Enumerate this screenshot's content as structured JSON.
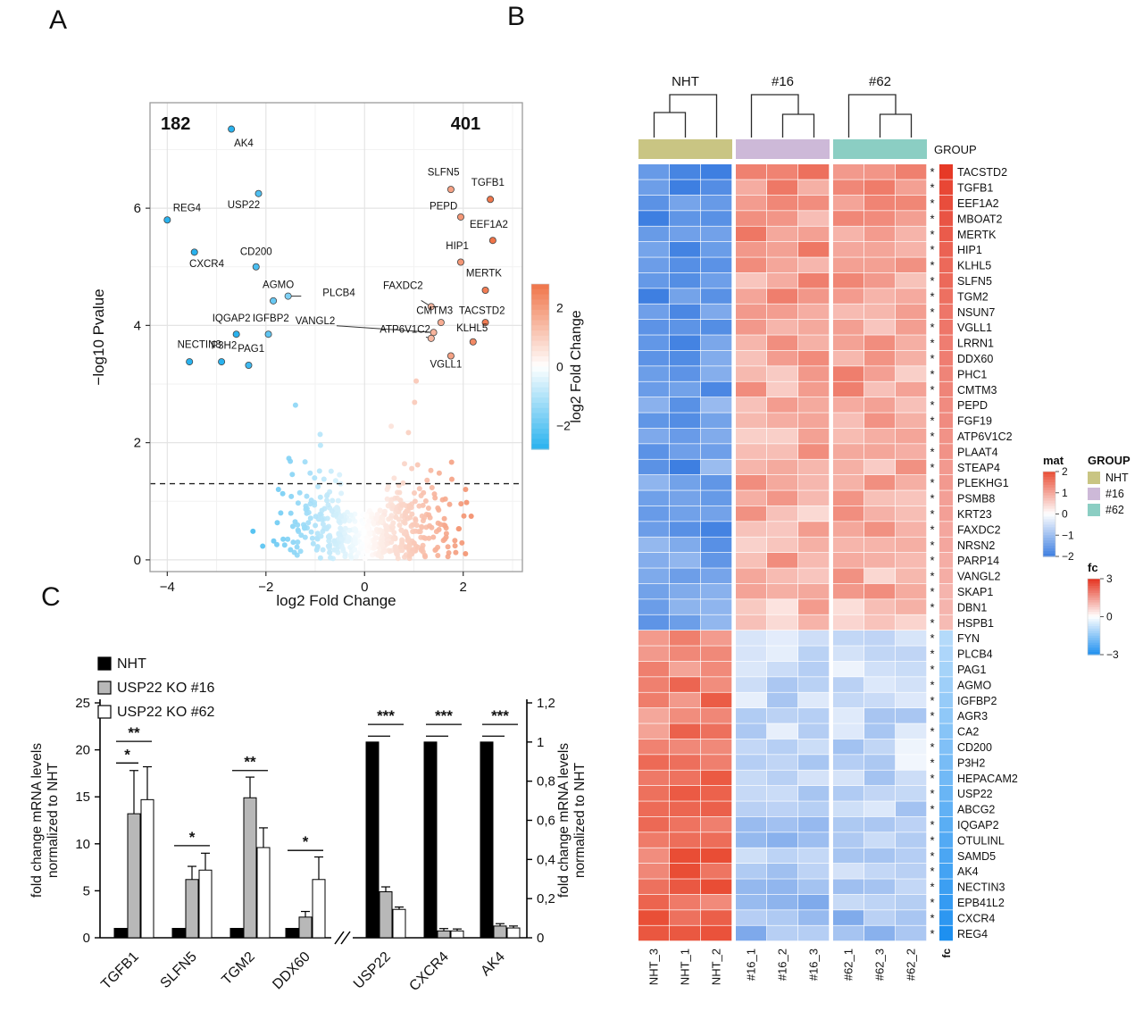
{
  "figure": {
    "panel_a_label": "A",
    "panel_b_label": "B",
    "panel_c_label": "C"
  },
  "chart_data": [
    {
      "id": "volcano",
      "type": "scatter",
      "xlabel": "log2 Fold Change",
      "ylabel": "−log10 Pvalue",
      "xlim": [
        -4.35,
        3.2
      ],
      "ylim": [
        -0.2,
        7.8
      ],
      "xticks": [
        -4,
        -2,
        0,
        2
      ],
      "yticks": [
        0,
        2,
        4,
        6
      ],
      "threshold_y": 1.3,
      "count_down": "182",
      "count_up": "401",
      "count_down_color": "#3fc0ea",
      "count_up_color": "#ee8a64",
      "point_color_neg": "#29b2ee",
      "point_color_pos": "#f07448",
      "colorbar": {
        "title": "log2 Fold Change",
        "ticks": [
          "2",
          "0",
          "−2"
        ],
        "tick_values": [
          2,
          0,
          -2
        ],
        "range": 2.8
      },
      "labeled_points": [
        {
          "gene": "AK4",
          "x": -2.7,
          "y": 7.35,
          "lx": -2.45,
          "ly": 7.05
        },
        {
          "gene": "REG4",
          "x": -4.0,
          "y": 5.8,
          "lx": -3.6,
          "ly": 5.95
        },
        {
          "gene": "USP22",
          "x": -2.15,
          "y": 6.25,
          "lx": -2.45,
          "ly": 6.0
        },
        {
          "gene": "CXCR4",
          "x": -3.45,
          "y": 5.25,
          "lx": -3.2,
          "ly": 5.0
        },
        {
          "gene": "CD200",
          "x": -2.2,
          "y": 5.0,
          "lx": -2.2,
          "ly": 5.2
        },
        {
          "gene": "AGMO",
          "x": -1.85,
          "y": 4.42,
          "lx": -1.75,
          "ly": 4.64
        },
        {
          "gene": "PLCB4",
          "x": -1.55,
          "y": 4.5,
          "lx": -0.85,
          "ly": 4.5,
          "anchor": "start",
          "connector": true
        },
        {
          "gene": "IQGAP2",
          "x": -2.6,
          "y": 3.85,
          "lx": -2.7,
          "ly": 4.07
        },
        {
          "gene": "IGFBP2",
          "x": -1.95,
          "y": 3.85,
          "lx": -1.9,
          "ly": 4.07
        },
        {
          "gene": "VANGL2",
          "x": 1.4,
          "y": 3.88,
          "lx": -1.0,
          "ly": 4.02,
          "connector": true
        },
        {
          "gene": "NECTIN3",
          "x": -3.55,
          "y": 3.38,
          "lx": -3.35,
          "ly": 3.62
        },
        {
          "gene": "P3H2",
          "x": -2.9,
          "y": 3.38,
          "lx": -2.85,
          "ly": 3.6
        },
        {
          "gene": "PAG1",
          "x": -2.35,
          "y": 3.32,
          "lx": -2.3,
          "ly": 3.55
        },
        {
          "gene": "SLFN5",
          "x": 1.75,
          "y": 6.32,
          "lx": 1.6,
          "ly": 6.56
        },
        {
          "gene": "TGFB1",
          "x": 2.55,
          "y": 6.15,
          "lx": 2.5,
          "ly": 6.38
        },
        {
          "gene": "PEPD",
          "x": 1.95,
          "y": 5.85,
          "lx": 1.6,
          "ly": 5.98
        },
        {
          "gene": "EEF1A2",
          "x": 2.6,
          "y": 5.45,
          "lx": 2.52,
          "ly": 5.67
        },
        {
          "gene": "HIP1",
          "x": 1.95,
          "y": 5.08,
          "lx": 1.88,
          "ly": 5.3
        },
        {
          "gene": "MERTK",
          "x": 2.45,
          "y": 4.6,
          "lx": 2.42,
          "ly": 4.84
        },
        {
          "gene": "FAXDC2",
          "x": 1.35,
          "y": 4.32,
          "lx": 0.78,
          "ly": 4.62,
          "connector": true
        },
        {
          "gene": "CMTM3",
          "x": 1.55,
          "y": 4.05,
          "lx": 1.42,
          "ly": 4.2
        },
        {
          "gene": "TACSTD2",
          "x": 2.45,
          "y": 4.05,
          "lx": 2.38,
          "ly": 4.2
        },
        {
          "gene": "ATP6V1C2",
          "x": 1.35,
          "y": 3.78,
          "lx": 0.82,
          "ly": 3.88,
          "connector": true
        },
        {
          "gene": "KLHL5",
          "x": 2.2,
          "y": 3.72,
          "lx": 2.18,
          "ly": 3.9
        },
        {
          "gene": "VGLL1",
          "x": 1.75,
          "y": 3.48,
          "lx": 1.65,
          "ly": 3.28
        }
      ]
    },
    {
      "id": "heatmap",
      "type": "heatmap",
      "groups": [
        {
          "name": "NHT",
          "color": "#c9c583",
          "columns": [
            "NHT_3",
            "NHT_1",
            "NHT_2"
          ]
        },
        {
          "name": "#16",
          "color": "#cdb9d8",
          "columns": [
            "#16_1",
            "#16_2",
            "#16_3"
          ]
        },
        {
          "name": "#62",
          "color": "#8bcec3",
          "columns": [
            "#62_1",
            "#62_3",
            "#62_2"
          ]
        }
      ],
      "group_band_label": "GROUP",
      "fc_col_label": "fc",
      "row_marker": "*",
      "cell_color_neg": "#3e7fe1",
      "cell_color_pos": "#e94d35",
      "fc_color_neg": "#1e90f0",
      "fc_color_pos": "#e5321e",
      "rows": [
        {
          "gene": "TACSTD2",
          "fc": 2.9
        },
        {
          "gene": "TGFB1",
          "fc": 2.7
        },
        {
          "gene": "EEF1A2",
          "fc": 2.6
        },
        {
          "gene": "MBOAT2",
          "fc": 2.5
        },
        {
          "gene": "MERTK",
          "fc": 2.4
        },
        {
          "gene": "HIP1",
          "fc": 2.3
        },
        {
          "gene": "KLHL5",
          "fc": 2.2
        },
        {
          "gene": "SLFN5",
          "fc": 2.2
        },
        {
          "gene": "TGM2",
          "fc": 2.1
        },
        {
          "gene": "NSUN7",
          "fc": 2.0
        },
        {
          "gene": "VGLL1",
          "fc": 2.0
        },
        {
          "gene": "LRRN1",
          "fc": 1.9
        },
        {
          "gene": "DDX60",
          "fc": 1.9
        },
        {
          "gene": "PHC1",
          "fc": 1.8
        },
        {
          "gene": "CMTM3",
          "fc": 1.8
        },
        {
          "gene": "PEPD",
          "fc": 1.7
        },
        {
          "gene": "FGF19",
          "fc": 1.7
        },
        {
          "gene": "ATP6V1C2",
          "fc": 1.6
        },
        {
          "gene": "PLAAT4",
          "fc": 1.6
        },
        {
          "gene": "STEAP4",
          "fc": 1.5
        },
        {
          "gene": "PLEKHG1",
          "fc": 1.5
        },
        {
          "gene": "PSMB8",
          "fc": 1.4
        },
        {
          "gene": "KRT23",
          "fc": 1.4
        },
        {
          "gene": "FAXDC2",
          "fc": 1.3
        },
        {
          "gene": "NRSN2",
          "fc": 1.3
        },
        {
          "gene": "PARP14",
          "fc": 1.2
        },
        {
          "gene": "VANGL2",
          "fc": 1.2
        },
        {
          "gene": "SKAP1",
          "fc": 1.1
        },
        {
          "gene": "DBN1",
          "fc": 1.1
        },
        {
          "gene": "HSPB1",
          "fc": 1.0
        },
        {
          "gene": "FYN",
          "fc": -1.0
        },
        {
          "gene": "PLCB4",
          "fc": -1.1
        },
        {
          "gene": "PAG1",
          "fc": -1.2
        },
        {
          "gene": "AGMO",
          "fc": -1.3
        },
        {
          "gene": "IGFBP2",
          "fc": -1.4
        },
        {
          "gene": "AGR3",
          "fc": -1.5
        },
        {
          "gene": "CA2",
          "fc": -1.6
        },
        {
          "gene": "CD200",
          "fc": -1.7
        },
        {
          "gene": "P3H2",
          "fc": -1.8
        },
        {
          "gene": "HEPACAM2",
          "fc": -1.9
        },
        {
          "gene": "USP22",
          "fc": -2.0
        },
        {
          "gene": "ABCG2",
          "fc": -2.1
        },
        {
          "gene": "IQGAP2",
          "fc": -2.2
        },
        {
          "gene": "OTULINL",
          "fc": -2.3
        },
        {
          "gene": "SAMD5",
          "fc": -2.4
        },
        {
          "gene": "AK4",
          "fc": -2.5
        },
        {
          "gene": "NECTIN3",
          "fc": -2.6
        },
        {
          "gene": "EPB41L2",
          "fc": -2.7
        },
        {
          "gene": "CXCR4",
          "fc": -2.8
        },
        {
          "gene": "REG4",
          "fc": -3.0
        }
      ],
      "value_model": {
        "up": {
          "nht_base": -1.1,
          "nht_slope": 0.25,
          "ko_base": 0.45,
          "ko_slope": 0.3
        },
        "down": {
          "nht_base": 1.0,
          "nht_slope": 0.3,
          "ko_base": -0.25,
          "ko_slope": 0.22
        },
        "jitter": 0.55
      },
      "mat_legend": {
        "title": "mat",
        "ticks": [
          "2",
          "1",
          "0",
          "−1",
          "−2"
        ],
        "tick_values": [
          2,
          1,
          0,
          -1,
          -2
        ],
        "range": 2
      },
      "group_legend_title": "GROUP",
      "fc_legend": {
        "title": "fc",
        "ticks": [
          "3",
          "0",
          "−3"
        ],
        "tick_values": [
          3,
          0,
          -3
        ],
        "range": 3
      }
    },
    {
      "id": "qpcr",
      "type": "bar",
      "ylabel_left_line1": "fold change mRNA levels",
      "ylabel_left_line2": "normalized to NHT",
      "ylabel_right_line1": "fold change mRNA levels",
      "ylabel_right_line2": "normalized to NHT",
      "ylim_left": [
        0,
        25
      ],
      "yticks_left": [
        0,
        5,
        10,
        15,
        20,
        25
      ],
      "ylim_right": [
        0,
        1.2
      ],
      "yticks_right": [
        {
          "v": 0,
          "label": "0"
        },
        {
          "v": 0.2,
          "label": "0,2"
        },
        {
          "v": 0.4,
          "label": "0,4"
        },
        {
          "v": 0.6,
          "label": "0,6"
        },
        {
          "v": 0.8,
          "label": "0,8"
        },
        {
          "v": 1,
          "label": "1"
        },
        {
          "v": 1.2,
          "label": "1,2"
        }
      ],
      "series": [
        {
          "name": "NHT",
          "fill": "#000000"
        },
        {
          "name": "USP22 KO #16",
          "fill": "#b8b8b8"
        },
        {
          "name": "USP22 KO #62",
          "fill": "#ffffff"
        }
      ],
      "axis_break_after_group": 3,
      "groups": [
        {
          "gene": "TGFB1",
          "axis": "left",
          "values": [
            1,
            13.2,
            14.7
          ],
          "errors": [
            0,
            4.6,
            3.5
          ]
        },
        {
          "gene": "SLFN5",
          "axis": "left",
          "values": [
            1,
            6.2,
            7.2
          ],
          "errors": [
            0,
            1.4,
            1.8
          ]
        },
        {
          "gene": "TGM2",
          "axis": "left",
          "values": [
            1,
            14.9,
            9.6
          ],
          "errors": [
            0,
            2.2,
            2.1
          ]
        },
        {
          "gene": "DDX60",
          "axis": "left",
          "values": [
            1,
            2.2,
            6.2
          ],
          "errors": [
            0,
            0.6,
            2.4
          ]
        },
        {
          "gene": "USP22",
          "axis": "right",
          "values": [
            1,
            0.235,
            0.145
          ],
          "errors": [
            0,
            0.025,
            0.012
          ]
        },
        {
          "gene": "CXCR4",
          "axis": "right",
          "values": [
            1,
            0.035,
            0.035
          ],
          "errors": [
            0,
            0.012,
            0.01
          ]
        },
        {
          "gene": "AK4",
          "axis": "right",
          "values": [
            1,
            0.06,
            0.05
          ],
          "errors": [
            0,
            0.012,
            0.01
          ]
        }
      ],
      "significance": [
        {
          "group": 0,
          "stars": "*",
          "span": [
            0,
            1
          ],
          "y": 18.6
        },
        {
          "group": 0,
          "stars": "**",
          "span": [
            0,
            2
          ],
          "y": 20.9
        },
        {
          "group": 1,
          "stars": "*",
          "span": [
            0,
            2
          ],
          "y": 9.8
        },
        {
          "group": 2,
          "stars": "**",
          "span": [
            0,
            2
          ],
          "y": 17.8
        },
        {
          "group": 3,
          "stars": "*",
          "span": [
            0,
            2
          ],
          "y": 9.3
        },
        {
          "group": 4,
          "stars": "***",
          "span": [
            0,
            2
          ],
          "y": 1.09
        },
        {
          "group": 4,
          "stars": "",
          "span": [
            0,
            1
          ],
          "y": 1.03
        },
        {
          "group": 5,
          "stars": "***",
          "span": [
            0,
            2
          ],
          "y": 1.09
        },
        {
          "group": 5,
          "stars": "",
          "span": [
            0,
            1
          ],
          "y": 1.03
        },
        {
          "group": 6,
          "stars": "***",
          "span": [
            0,
            2
          ],
          "y": 1.09
        },
        {
          "group": 6,
          "stars": "",
          "span": [
            0,
            1
          ],
          "y": 1.03
        }
      ]
    }
  ]
}
